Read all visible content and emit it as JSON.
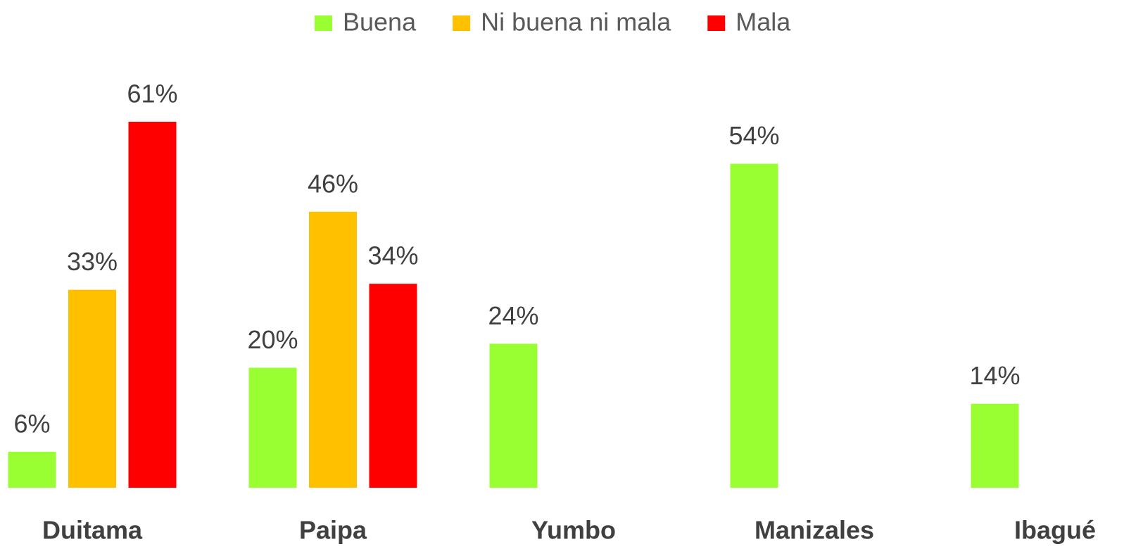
{
  "chart_data": {
    "type": "bar",
    "categories": [
      "Duitama",
      "Paipa",
      "Yumbo",
      "Manizales",
      "Ibagué"
    ],
    "series": [
      {
        "name": "Buena",
        "color": "#99ff33",
        "values": [
          6,
          20,
          24,
          54,
          14
        ],
        "value_labels": [
          "6%",
          "20%",
          "24%",
          "54%",
          "14%"
        ]
      },
      {
        "name": "Ni buena ni mala",
        "color": "#ffc000",
        "values": [
          33,
          46,
          null,
          null,
          null
        ],
        "value_labels": [
          "33%",
          "46%",
          null,
          null,
          null
        ]
      },
      {
        "name": "Mala",
        "color": "#ff0000",
        "values": [
          61,
          34,
          null,
          null,
          null
        ],
        "value_labels": [
          "61%",
          "34%",
          null,
          null,
          null
        ]
      }
    ],
    "ylim": [
      0,
      80
    ],
    "legend": "top"
  }
}
